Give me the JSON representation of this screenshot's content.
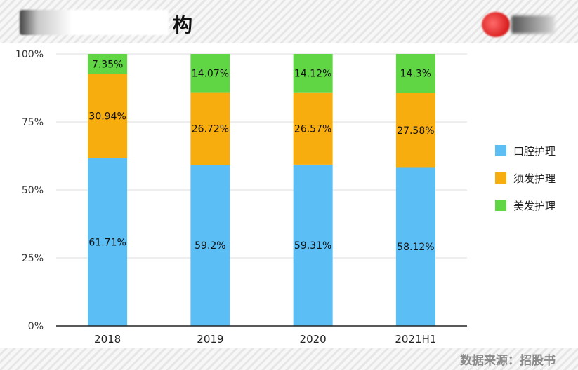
{
  "header": {
    "title_visible": "构"
  },
  "footer": {
    "source": "数据来源：招股书"
  },
  "chart_data": {
    "type": "bar",
    "stacked": true,
    "categories": [
      "2018",
      "2019",
      "2020",
      "2021H1"
    ],
    "series": [
      {
        "name": "口腔护理",
        "values": [
          61.71,
          59.2,
          59.31,
          58.12
        ],
        "labels": [
          "61.71%",
          "59.2%",
          "59.31%",
          "58.12%"
        ],
        "color": "#5bbef5"
      },
      {
        "name": "须发护理",
        "values": [
          30.94,
          26.72,
          26.57,
          27.58
        ],
        "labels": [
          "30.94%",
          "26.72%",
          "26.57%",
          "27.58%"
        ],
        "color": "#f8ad0e"
      },
      {
        "name": "美发护理",
        "values": [
          7.35,
          14.07,
          14.12,
          14.3
        ],
        "labels": [
          "7.35%",
          "14.07%",
          "14.12%",
          "14.3%"
        ],
        "color": "#60d644"
      }
    ],
    "yticks": [
      "0%",
      "25%",
      "50%",
      "75%",
      "100%"
    ],
    "ylim": [
      0,
      100
    ],
    "legend_position": "right",
    "grid": true
  }
}
